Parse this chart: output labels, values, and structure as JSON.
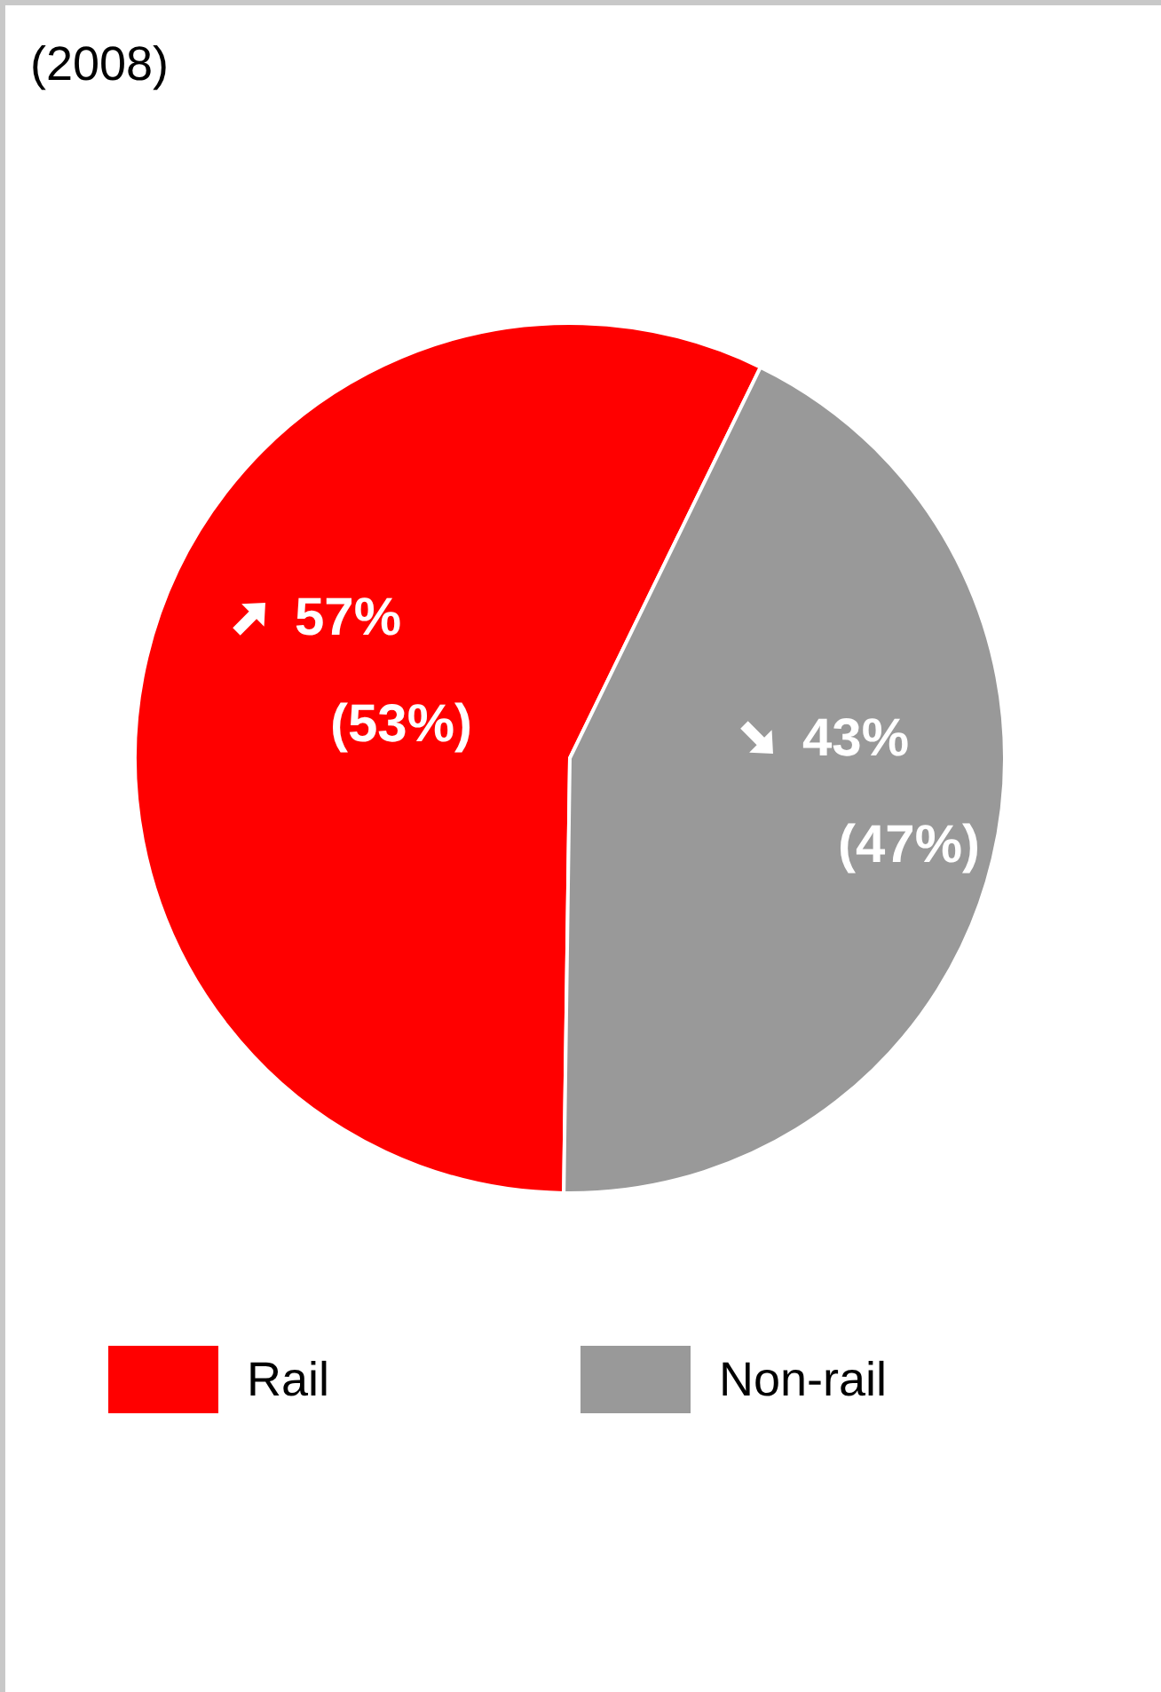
{
  "chart_data": {
    "type": "pie",
    "title": "(2008)",
    "categories": [
      "Rail",
      "Non-rail"
    ],
    "values": [
      57,
      43
    ],
    "colors": [
      "#ff0000",
      "#999999"
    ],
    "value_labels": [
      "57%",
      "43%"
    ],
    "annotations": [
      "(53%)",
      "(47%)"
    ],
    "legend": "bottom"
  }
}
